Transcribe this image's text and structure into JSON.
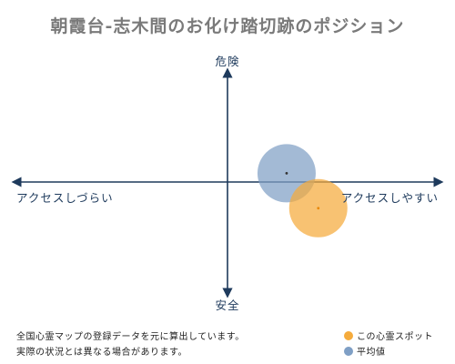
{
  "title": "朝霞台-志木間のお化け踏切跡のポジション",
  "chart_data": {
    "type": "scatter",
    "axes": {
      "top": "危険",
      "bottom": "安全",
      "left": "アクセスしづらい",
      "right": "アクセスしやすい"
    },
    "xlim": [
      -1,
      1
    ],
    "ylim": [
      -1,
      1
    ],
    "series": [
      {
        "name": "平均値",
        "x": 0.28,
        "y": 0.08,
        "color": "#7f9fc5"
      },
      {
        "name": "この心霊スポット",
        "x": 0.43,
        "y": -0.24,
        "color": "#f5ab3c"
      }
    ]
  },
  "footer": {
    "line1": "全国心霊マップの登録データを元に算出しています。",
    "line2": "実際の状況とは異なる場合があります。"
  },
  "legend": [
    {
      "label": "この心霊スポット",
      "color": "#f5ab3c"
    },
    {
      "label": "平均値",
      "color": "#7f9fc5"
    }
  ]
}
